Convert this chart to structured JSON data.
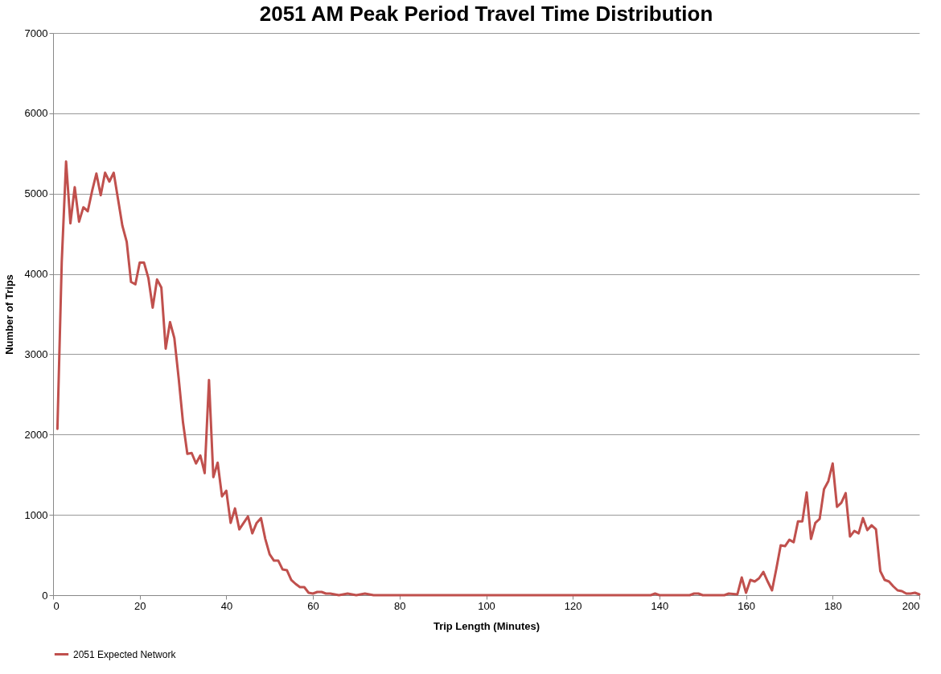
{
  "chart_data": {
    "type": "line",
    "title": "2051 AM Peak Period Travel Time Distribution",
    "xlabel": "Trip Length (Minutes)",
    "ylabel": "Number of Trips",
    "xlim": [
      0,
      200
    ],
    "xticks": [
      0,
      20,
      40,
      60,
      80,
      100,
      120,
      140,
      160,
      180,
      200
    ],
    "ylim": [
      0,
      7000
    ],
    "yticks": [
      0,
      1000,
      2000,
      3000,
      4000,
      5000,
      6000,
      7000
    ],
    "grid": "y",
    "legend": "bottom",
    "marker": "none",
    "line_style": "solid",
    "x": [
      1,
      2,
      3,
      4,
      5,
      6,
      7,
      8,
      9,
      10,
      11,
      12,
      13,
      14,
      15,
      16,
      17,
      18,
      19,
      20,
      21,
      22,
      23,
      24,
      25,
      26,
      27,
      28,
      29,
      30,
      31,
      32,
      33,
      34,
      35,
      36,
      37,
      38,
      39,
      40,
      41,
      42,
      43,
      44,
      45,
      46,
      47,
      48,
      49,
      50,
      51,
      52,
      53,
      54,
      55,
      56,
      57,
      58,
      59,
      60,
      61,
      62,
      63,
      64,
      65,
      66,
      67,
      68,
      69,
      70,
      72,
      74,
      138,
      139,
      140,
      147,
      148,
      149,
      150,
      155,
      156,
      158,
      159,
      160,
      161,
      162,
      163,
      164,
      165,
      166,
      167,
      168,
      169,
      170,
      171,
      172,
      173,
      174,
      175,
      176,
      177,
      178,
      179,
      180,
      181,
      182,
      183,
      184,
      185,
      186,
      187,
      188,
      189,
      190,
      191,
      192,
      193,
      194,
      195,
      196,
      197,
      198,
      199,
      200
    ],
    "series": [
      {
        "name": "2051 Expected Network",
        "color": "#c0504d",
        "values": [
          2070,
          4150,
          5400,
          4630,
          5080,
          4650,
          4830,
          4780,
          5030,
          5250,
          4980,
          5260,
          5150,
          5260,
          4930,
          4600,
          4400,
          3900,
          3870,
          4140,
          4140,
          3950,
          3580,
          3930,
          3830,
          3070,
          3400,
          3200,
          2700,
          2150,
          1760,
          1770,
          1640,
          1740,
          1520,
          2680,
          1470,
          1650,
          1230,
          1300,
          900,
          1080,
          820,
          900,
          980,
          770,
          900,
          960,
          700,
          510,
          430,
          430,
          320,
          310,
          190,
          140,
          100,
          100,
          30,
          20,
          40,
          40,
          20,
          20,
          10,
          0,
          10,
          20,
          10,
          0,
          20,
          0,
          0,
          20,
          0,
          0,
          20,
          20,
          0,
          0,
          20,
          10,
          220,
          30,
          190,
          170,
          210,
          290,
          170,
          60,
          330,
          620,
          610,
          690,
          660,
          920,
          920,
          1280,
          700,
          900,
          950,
          1320,
          1420,
          1640,
          1100,
          1150,
          1270,
          730,
          800,
          770,
          960,
          810,
          870,
          820,
          300,
          190,
          170,
          110,
          60,
          50,
          20,
          20,
          30,
          10
        ]
      }
    ]
  }
}
